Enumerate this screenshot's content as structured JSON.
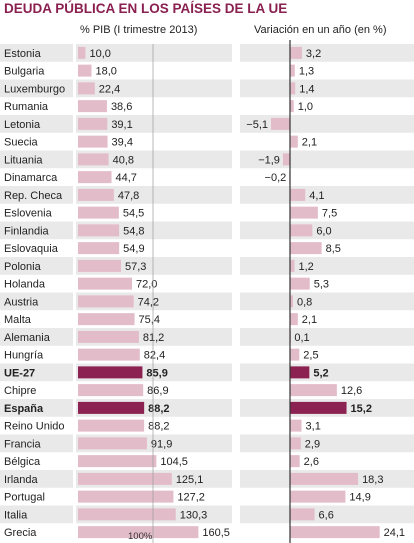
{
  "title": "DEUDA PÚBLICA EN LOS PAÍSES DE LA UE",
  "left_header": "% PIB (I trimestre 2013)",
  "right_header": "Variación en un año (en %)",
  "ref_line_label": "100%",
  "colors": {
    "title": "#8a2050",
    "bar_normal": "#e3bcc9",
    "bar_highlight": "#8b2252",
    "row_stripe": "#e9e9e9",
    "separator": "#ffffff",
    "axis": "#333333"
  },
  "chart_data": [
    {
      "type": "bar",
      "title": "% PIB (I trimestre 2013)",
      "categories": [
        "Estonia",
        "Bulgaria",
        "Luxemburgo",
        "Rumania",
        "Letonia",
        "Suecia",
        "Lituania",
        "Dinamarca",
        "Rep. Checa",
        "Eslovenia",
        "Finlandia",
        "Eslovaquia",
        "Polonia",
        "Holanda",
        "Austria",
        "Malta",
        "Alemania",
        "Hungría",
        "UE-27",
        "Chipre",
        "España",
        "Reino Unido",
        "Francia",
        "Bélgica",
        "Irlanda",
        "Portugal",
        "Italia",
        "Grecia"
      ],
      "values": [
        10.0,
        18.0,
        22.4,
        38.6,
        39.1,
        39.4,
        40.8,
        44.7,
        47.8,
        54.5,
        54.8,
        54.9,
        57.3,
        72.0,
        74.2,
        75.4,
        81.2,
        82.4,
        85.9,
        86.9,
        88.2,
        88.2,
        91.9,
        104.5,
        125.1,
        127.2,
        130.3,
        160.5
      ],
      "labels": [
        "10,0",
        "18,0",
        "22,4",
        "38,6",
        "39,1",
        "39,4",
        "40,8",
        "44,7",
        "47,8",
        "54,5",
        "54,8",
        "54,9",
        "57,3",
        "72,0",
        "74,2",
        "75,4",
        "81,2",
        "82,4",
        "85,9",
        "86,9",
        "88,2",
        "88,2",
        "91,9",
        "104,5",
        "125,1",
        "127,2",
        "130,3",
        "160,5"
      ],
      "highlight": [
        "UE-27",
        "España"
      ],
      "reference_line": 100,
      "xlim": [
        0,
        160.5
      ]
    },
    {
      "type": "bar",
      "title": "Variación en un año (en %)",
      "categories": [
        "Estonia",
        "Bulgaria",
        "Luxemburgo",
        "Rumania",
        "Letonia",
        "Suecia",
        "Lituania",
        "Dinamarca",
        "Rep. Checa",
        "Eslovenia",
        "Finlandia",
        "Eslovaquia",
        "Polonia",
        "Holanda",
        "Austria",
        "Malta",
        "Alemania",
        "Hungría",
        "UE-27",
        "Chipre",
        "España",
        "Reino Unido",
        "Francia",
        "Bélgica",
        "Irlanda",
        "Portugal",
        "Italia",
        "Grecia"
      ],
      "values": [
        3.2,
        1.3,
        1.4,
        1.0,
        -5.1,
        2.1,
        -1.9,
        -0.2,
        4.1,
        7.5,
        6.0,
        8.5,
        1.2,
        5.3,
        0.8,
        2.1,
        0.1,
        2.5,
        5.2,
        12.6,
        15.2,
        3.1,
        2.9,
        2.6,
        18.3,
        14.9,
        6.6,
        24.1
      ],
      "labels": [
        "3,2",
        "1,3",
        "1,4",
        "1,0",
        "−5,1",
        "2,1",
        "−1,9",
        "−0,2",
        "4,1",
        "7,5",
        "6,0",
        "8,5",
        "1,2",
        "5,3",
        "0,8",
        "2,1",
        "0,1",
        "2,5",
        "5,2",
        "12,6",
        "15,2",
        "3,1",
        "2,9",
        "2,6",
        "18,3",
        "14,9",
        "6,6",
        "24,1"
      ],
      "highlight": [
        "UE-27",
        "España"
      ],
      "xlim": [
        -5.1,
        24.1
      ]
    }
  ]
}
